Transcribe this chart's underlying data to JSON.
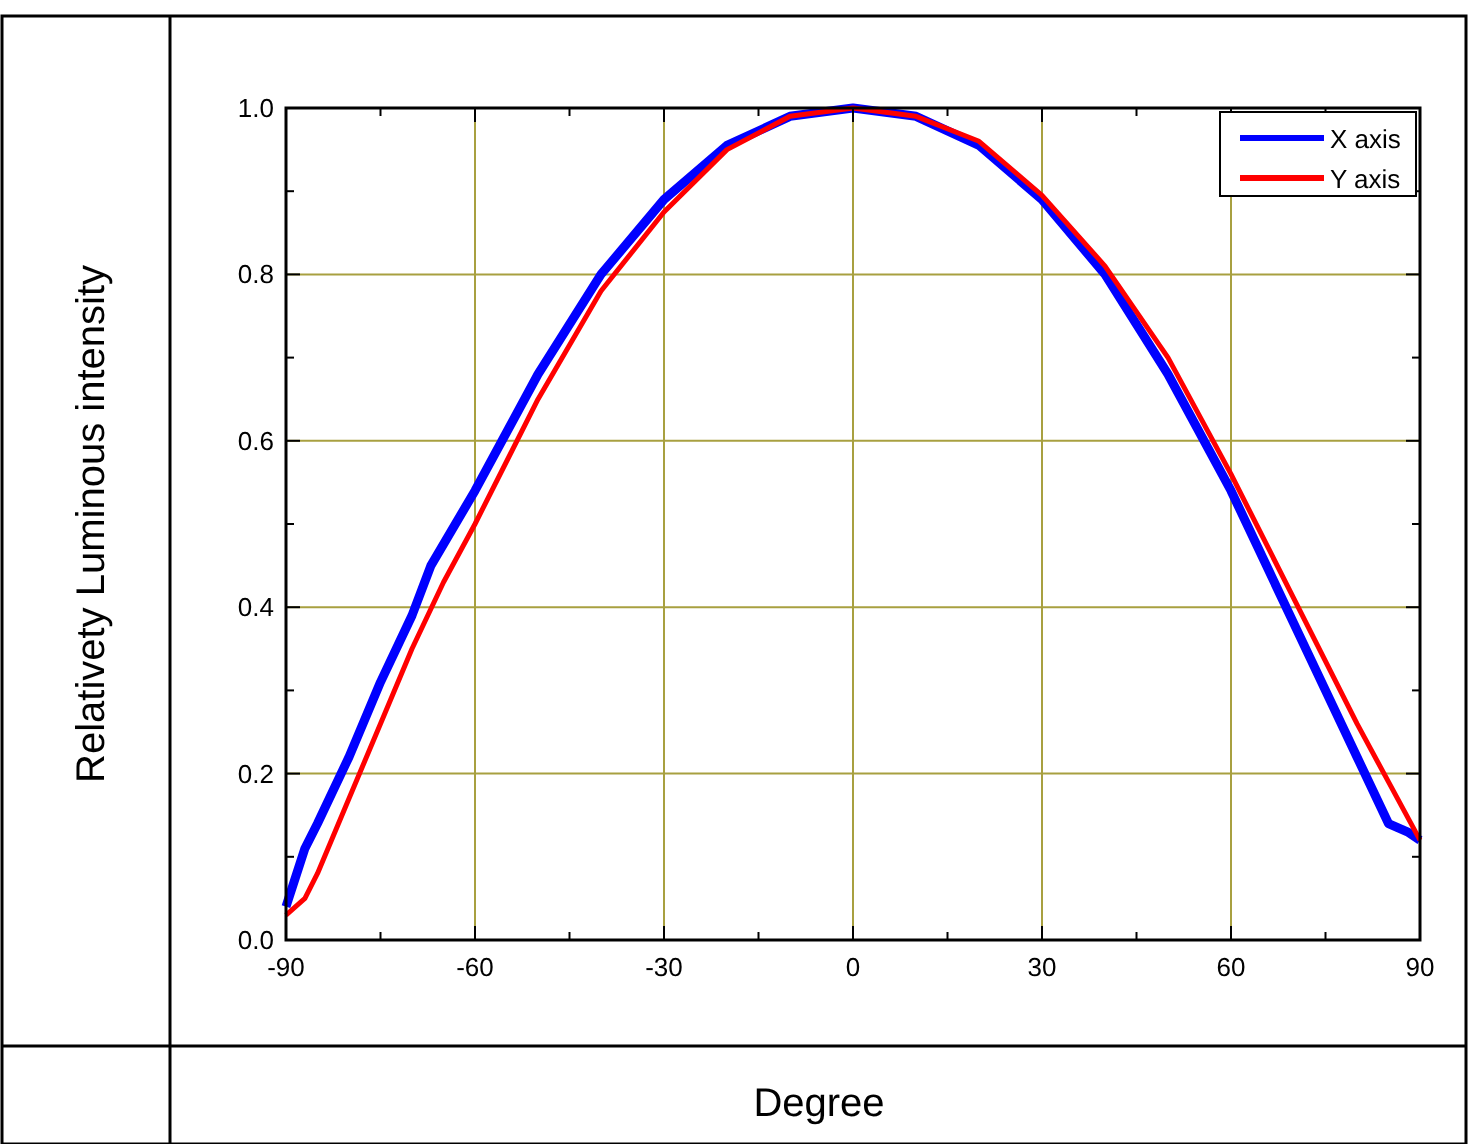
{
  "chart_data": {
    "type": "line",
    "xlabel": "Degree",
    "ylabel": "Relativety Luminous intensity",
    "xlim": [
      -90,
      90
    ],
    "ylim": [
      0,
      1
    ],
    "xticks": [
      -90,
      {
        "value": -75,
        "label": null
      },
      -60,
      {
        "value": -45,
        "label": null
      },
      -30,
      {
        "value": -15,
        "label": null
      },
      0,
      {
        "value": 15,
        "label": null
      },
      30,
      {
        "value": 45,
        "label": null
      },
      60,
      {
        "value": 75,
        "label": null
      },
      90
    ],
    "yticks": [
      "0.0",
      {
        "value": 0.1,
        "label": null
      },
      {
        "value": 0.2,
        "label": "0.2"
      },
      {
        "value": 0.3,
        "label": null
      },
      {
        "value": 0.4,
        "label": "0.4"
      },
      {
        "value": 0.5,
        "label": null
      },
      {
        "value": 0.6,
        "label": "0.6"
      },
      {
        "value": 0.7,
        "label": null
      },
      {
        "value": 0.8,
        "label": "0.8"
      },
      {
        "value": 0.9,
        "label": null
      },
      {
        "value": 1,
        "label": "1.0"
      }
    ],
    "grid": true,
    "legend": "top right",
    "marker": "none",
    "line_style": "solid",
    "series": [
      {
        "name": "X axis",
        "color": "#0000ff",
        "x": [
          -90,
          -87,
          -85,
          -80,
          -75,
          -70,
          -67,
          -60,
          -50,
          -40,
          -30,
          -20,
          -10,
          0,
          10,
          20,
          30,
          40,
          50,
          60,
          70,
          80,
          85,
          88,
          90
        ],
        "values": [
          0.04,
          0.11,
          0.14,
          0.22,
          0.31,
          0.39,
          0.45,
          0.54,
          0.68,
          0.8,
          0.89,
          0.955,
          0.99,
          1,
          0.99,
          0.955,
          0.89,
          0.8,
          0.68,
          0.54,
          0.38,
          0.22,
          0.14,
          0.13,
          0.12
        ]
      },
      {
        "name": "Y axis",
        "color": "#ff0000",
        "x": [
          -90,
          -87,
          -85,
          -80,
          -75,
          -70,
          -65,
          -60,
          -50,
          -40,
          -30,
          -20,
          -10,
          0,
          10,
          20,
          30,
          40,
          50,
          60,
          70,
          80,
          85,
          90
        ],
        "values": [
          0.03,
          0.05,
          0.08,
          0.17,
          0.26,
          0.35,
          0.43,
          0.5,
          0.65,
          0.78,
          0.875,
          0.95,
          0.99,
          1,
          0.99,
          0.96,
          0.895,
          0.81,
          0.7,
          0.56,
          0.41,
          0.26,
          0.19,
          0.12
        ]
      }
    ]
  }
}
